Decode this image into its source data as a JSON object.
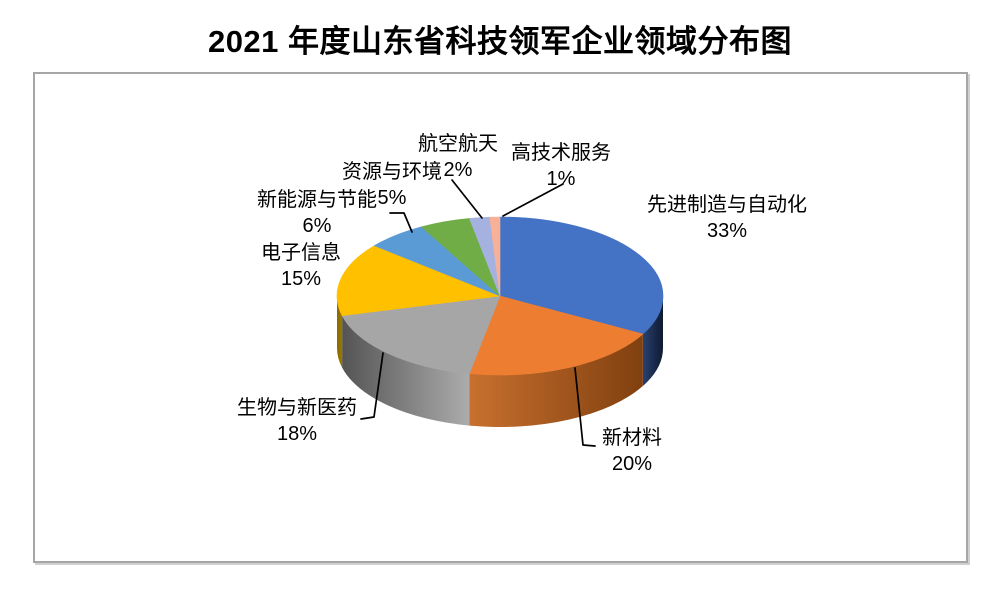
{
  "page": {
    "title": "2021 年度山东省科技领军企业领域分布图"
  },
  "chart_data": {
    "type": "pie",
    "style": "3d",
    "title": "2021 年度山东省科技领军企业领域分布图",
    "unit": "%",
    "start_angle_deg": 0,
    "direction": "clockwise",
    "legend_position": "none",
    "data_labels": "outside, category name + percentage, with leader lines",
    "categories": [
      "先进制造与自动化",
      "新材料",
      "生物与新医药",
      "电子信息",
      "新能源与节能",
      "资源与环境",
      "航空航天",
      "高技术服务"
    ],
    "values": [
      33,
      20,
      18,
      15,
      6,
      5,
      2,
      1
    ],
    "slices": [
      {
        "label": "先进制造与自动化",
        "pct_label": "33%",
        "value": 33,
        "color": "#4472C4",
        "side_from": "#2A4170",
        "side_to": "#0D1A31"
      },
      {
        "label": "新材料",
        "pct_label": "20%",
        "value": 20,
        "color": "#ED7D31",
        "side_from": "#C8702F",
        "side_to": "#80400F"
      },
      {
        "label": "生物与新医药",
        "pct_label": "18%",
        "value": 18,
        "color": "#A6A6A6",
        "side_from": "#545454",
        "side_to": "#ACACAC"
      },
      {
        "label": "电子信息",
        "pct_label": "15%",
        "value": 15,
        "color": "#FFC000",
        "side_from": "#8A6A00",
        "side_to": "#9B7800"
      },
      {
        "label": "新能源与节能",
        "pct_label": "6%",
        "value": 6,
        "color": "#5B9BD5",
        "side_from": "#35648F",
        "side_to": "#35648F"
      },
      {
        "label": "资源与环境",
        "pct_label": "5%",
        "value": 5,
        "color": "#70AD47",
        "side_from": "#4A7330",
        "side_to": "#4A7330"
      },
      {
        "label": "航空航天",
        "pct_label": "2%",
        "value": 2,
        "color": "#A5B2DF",
        "side_from": "#6A7CAC",
        "side_to": "#6A7CAC"
      },
      {
        "label": "高技术服务",
        "pct_label": "1%",
        "value": 1,
        "color": "#F8B097",
        "side_from": "#C58167",
        "side_to": "#C58167"
      }
    ]
  }
}
